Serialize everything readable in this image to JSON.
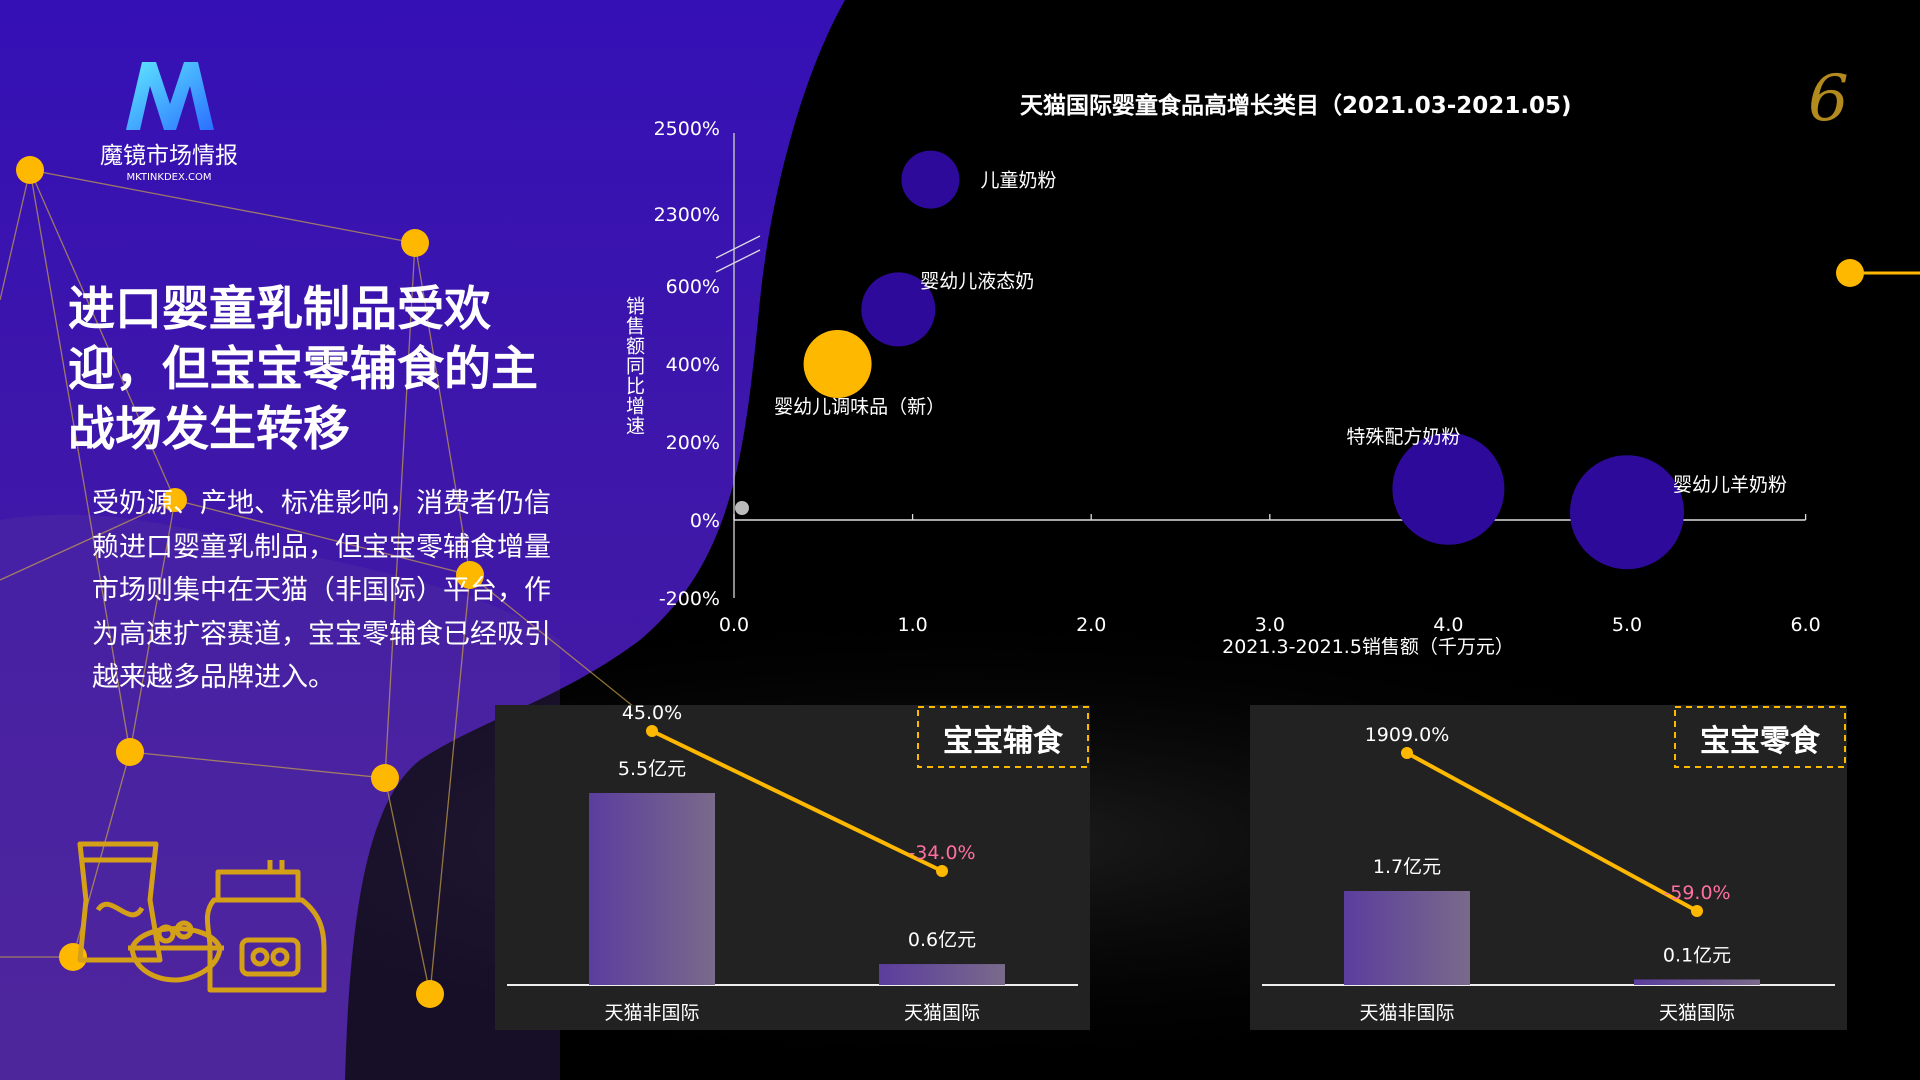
{
  "brand": {
    "name": "魔镜市场情报",
    "url": "MKTINKDEX.COM"
  },
  "page_number": "6",
  "headline": "进口婴童乳制品受欢迎，但宝宝零辅食的主战场发生转移",
  "body": "受奶源、产地、标准影响，消费者仍信赖进口婴童乳制品，但宝宝零辅食增量市场则集中在天猫（非国际）平台，作为高速扩容赛道，宝宝零辅食已经吸引越来越多品牌进入。",
  "colors": {
    "purple": "#3a10b0",
    "bubble": "#2e0a9a",
    "highlight": "#ffb800",
    "negative": "#ff6fa0",
    "panel": "#232323"
  },
  "chart_data": [
    {
      "type": "scatter",
      "title": "天猫国际婴童食品高增长类目（2021.03-2021.05)",
      "xlabel": "2021.3-2021.5销售额（千万元）",
      "ylabel": "销售额同比增速",
      "x_ticks": [
        "0.0",
        "1.0",
        "2.0",
        "3.0",
        "4.0",
        "5.0",
        "6.0"
      ],
      "xlim": [
        0,
        6
      ],
      "y_ticks": [
        "-200%",
        "0%",
        "200%",
        "400%",
        "600%",
        "2300%",
        "2500%"
      ],
      "y_axis_break": [
        600,
        2300
      ],
      "points": [
        {
          "name": "儿童奶粉",
          "x": 1.1,
          "y": 2380,
          "highlight": false
        },
        {
          "name": "婴幼儿液态奶",
          "x": 0.92,
          "y": 540,
          "highlight": false
        },
        {
          "name": "婴幼儿调味品（新）",
          "x": 0.58,
          "y": 400,
          "highlight": true
        },
        {
          "name": "特殊配方奶粉",
          "x": 4.0,
          "y": 80,
          "highlight": false
        },
        {
          "name": "婴幼儿羊奶粉",
          "x": 5.0,
          "y": 20,
          "highlight": false
        }
      ],
      "grid": false
    },
    {
      "type": "bar",
      "title": "宝宝辅食",
      "categories": [
        "天猫非国际",
        "天猫国际"
      ],
      "values": [
        5.5,
        0.6
      ],
      "value_labels": [
        "5.5亿元",
        "0.6亿元"
      ],
      "unit": "亿元",
      "growth": [
        45.0,
        -34.0
      ],
      "growth_labels": [
        "45.0%",
        "-34.0%"
      ]
    },
    {
      "type": "bar",
      "title": "宝宝零食",
      "categories": [
        "天猫非国际",
        "天猫国际"
      ],
      "values": [
        1.7,
        0.1
      ],
      "value_labels": [
        "1.7亿元",
        "0.1亿元"
      ],
      "unit": "亿元",
      "growth": [
        1909.0,
        -59.0
      ],
      "growth_labels": [
        "1909.0%",
        "-59.0%"
      ]
    }
  ]
}
